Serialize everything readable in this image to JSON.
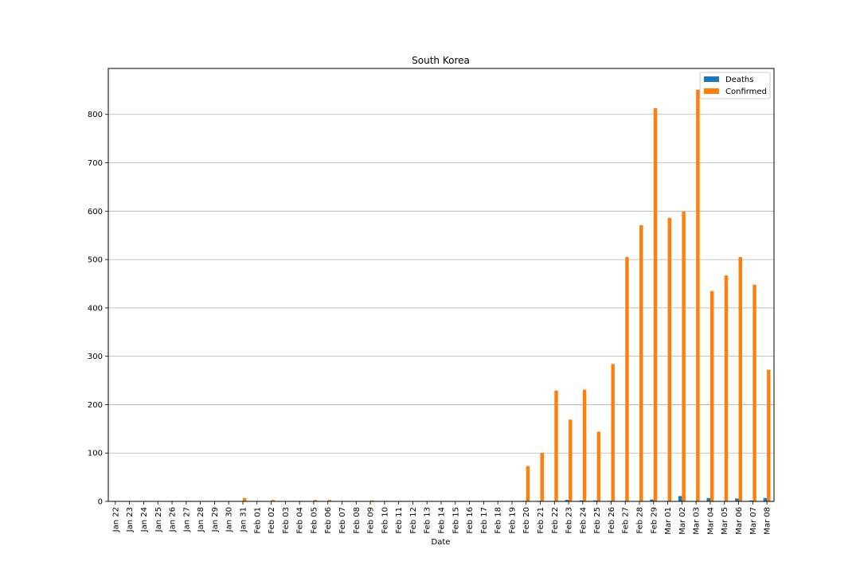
{
  "chart_data": {
    "type": "bar",
    "title": "South Korea",
    "xlabel": "Date",
    "ylabel": "",
    "ylim": [
      0,
      895
    ],
    "yticks": [
      0,
      100,
      200,
      300,
      400,
      500,
      600,
      700,
      800
    ],
    "grid": "y",
    "legend_position": "top-right",
    "categories": [
      "Jan 22",
      "Jan 23",
      "Jan 24",
      "Jan 25",
      "Jan 26",
      "Jan 27",
      "Jan 28",
      "Jan 29",
      "Jan 30",
      "Jan 31",
      "Feb 01",
      "Feb 02",
      "Feb 03",
      "Feb 04",
      "Feb 05",
      "Feb 06",
      "Feb 07",
      "Feb 08",
      "Feb 09",
      "Feb 10",
      "Feb 11",
      "Feb 12",
      "Feb 13",
      "Feb 14",
      "Feb 15",
      "Feb 16",
      "Feb 17",
      "Feb 18",
      "Feb 19",
      "Feb 20",
      "Feb 21",
      "Feb 22",
      "Feb 23",
      "Feb 24",
      "Feb 25",
      "Feb 26",
      "Feb 27",
      "Feb 28",
      "Feb 29",
      "Mar 01",
      "Mar 02",
      "Mar 03",
      "Mar 04",
      "Mar 05",
      "Mar 06",
      "Mar 07",
      "Mar 08"
    ],
    "series": [
      {
        "name": "Deaths",
        "color": "#1f77b4",
        "values": [
          0,
          0,
          0,
          0,
          0,
          0,
          0,
          0,
          0,
          0,
          0,
          0,
          0,
          0,
          0,
          0,
          0,
          0,
          0,
          0,
          0,
          0,
          0,
          0,
          0,
          0,
          0,
          0,
          0,
          1,
          1,
          0,
          3,
          2,
          2,
          1,
          1,
          0,
          4,
          1,
          11,
          0,
          7,
          0,
          6,
          2,
          7
        ]
      },
      {
        "name": "Confirmed",
        "color": "#ff7f0e",
        "values": [
          0,
          0,
          1,
          0,
          1,
          1,
          0,
          0,
          0,
          7,
          1,
          3,
          0,
          1,
          3,
          3,
          1,
          0,
          2,
          1,
          1,
          0,
          0,
          0,
          0,
          1,
          1,
          1,
          0,
          73,
          100,
          229,
          169,
          231,
          144,
          284,
          505,
          571,
          813,
          586,
          599,
          851,
          435,
          467,
          505,
          448,
          272
        ]
      }
    ]
  }
}
